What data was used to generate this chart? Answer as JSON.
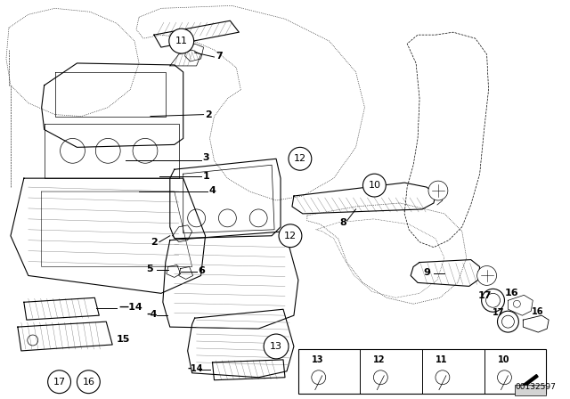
{
  "background_color": "#ffffff",
  "line_color": "#000000",
  "part_number": "00132597",
  "fig_width": 6.4,
  "fig_height": 4.48,
  "dpi": 100
}
